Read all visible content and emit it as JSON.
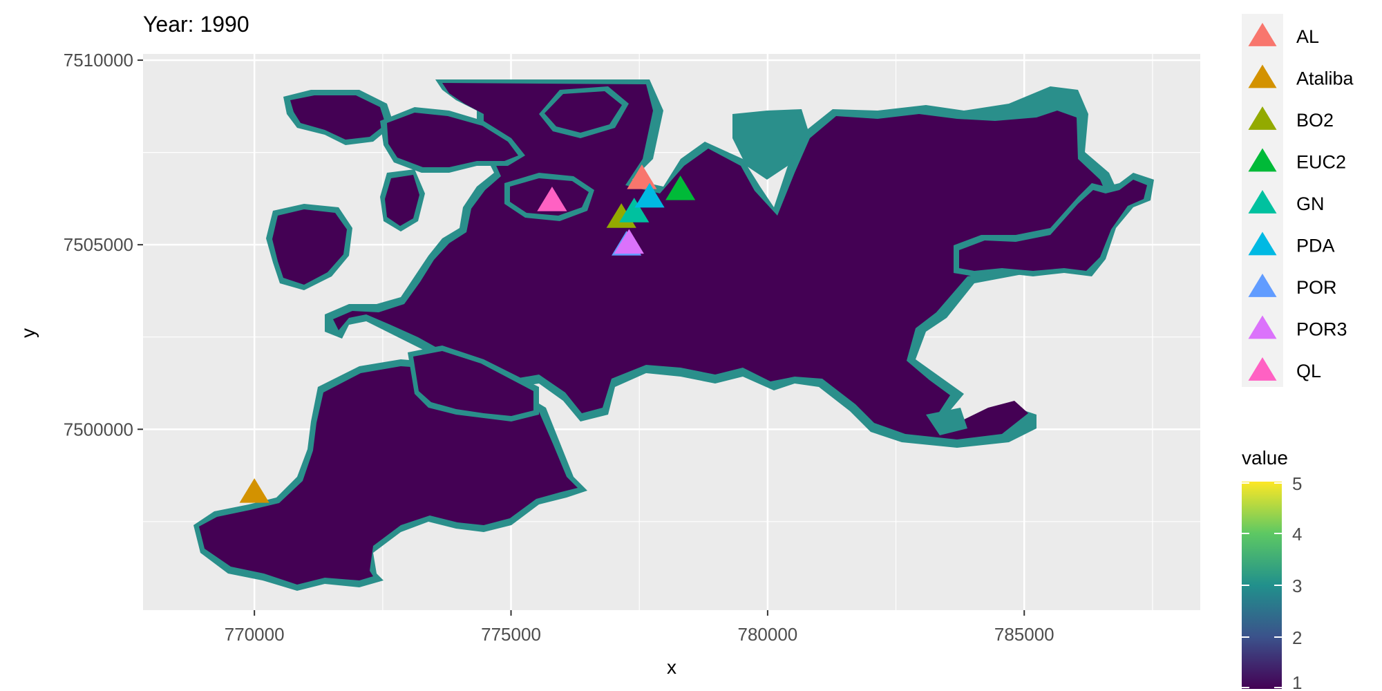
{
  "title": "Year: 1990",
  "xlabel": "x",
  "ylabel": "y",
  "x_ticks": [
    "770000",
    "775000",
    "780000",
    "785000"
  ],
  "y_ticks": [
    "7510000",
    "7505000",
    "7500000"
  ],
  "colors": {
    "panel_bg": "#ebebeb",
    "grid": "#ffffff",
    "land_main": "#440154",
    "land_edge": "#2a8f8b",
    "land_mid": "#3b528b",
    "legend_key_bg": "#f2f2f2"
  },
  "point_legend": {
    "title": "",
    "items": [
      {
        "label": "AL",
        "color": "#f8766d"
      },
      {
        "label": "Ataliba",
        "color": "#d39200"
      },
      {
        "label": "BO2",
        "color": "#93aa00"
      },
      {
        "label": "EUC2",
        "color": "#00ba38"
      },
      {
        "label": "GN",
        "color": "#00c19f"
      },
      {
        "label": "PDA",
        "color": "#00b9e3"
      },
      {
        "label": "POR",
        "color": "#619cff"
      },
      {
        "label": "POR3",
        "color": "#db72fb"
      },
      {
        "label": "QL",
        "color": "#ff61c3"
      }
    ]
  },
  "color_legend": {
    "title": "value",
    "ticks": [
      "5",
      "4",
      "3",
      "2",
      "1"
    ]
  },
  "chart_data": {
    "type": "scatter",
    "title": "Year: 1990",
    "xlabel": "x",
    "ylabel": "y",
    "xlim": [
      767830,
      788430
    ],
    "ylim": [
      7495100,
      7510170
    ],
    "grid": true,
    "legend": "right",
    "series": [
      {
        "name": "AL",
        "x": [
          777550
        ],
        "y": [
          7506800
        ]
      },
      {
        "name": "Ataliba",
        "x": [
          770000
        ],
        "y": [
          7498300
        ]
      },
      {
        "name": "BO2",
        "x": [
          777150
        ],
        "y": [
          7505750
        ]
      },
      {
        "name": "EUC2",
        "x": [
          778300
        ],
        "y": [
          7506500
        ]
      },
      {
        "name": "GN",
        "x": [
          777400
        ],
        "y": [
          7505900
        ]
      },
      {
        "name": "PDA",
        "x": [
          777700
        ],
        "y": [
          7506300
        ]
      },
      {
        "name": "POR",
        "x": [
          777250
        ],
        "y": [
          7505000
        ]
      },
      {
        "name": "POR3",
        "x": [
          777300
        ],
        "y": [
          7505050
        ]
      },
      {
        "name": "QL",
        "x": [
          775800
        ],
        "y": [
          7506200
        ]
      }
    ],
    "raster": {
      "name": "value",
      "range": [
        1,
        5
      ]
    }
  }
}
